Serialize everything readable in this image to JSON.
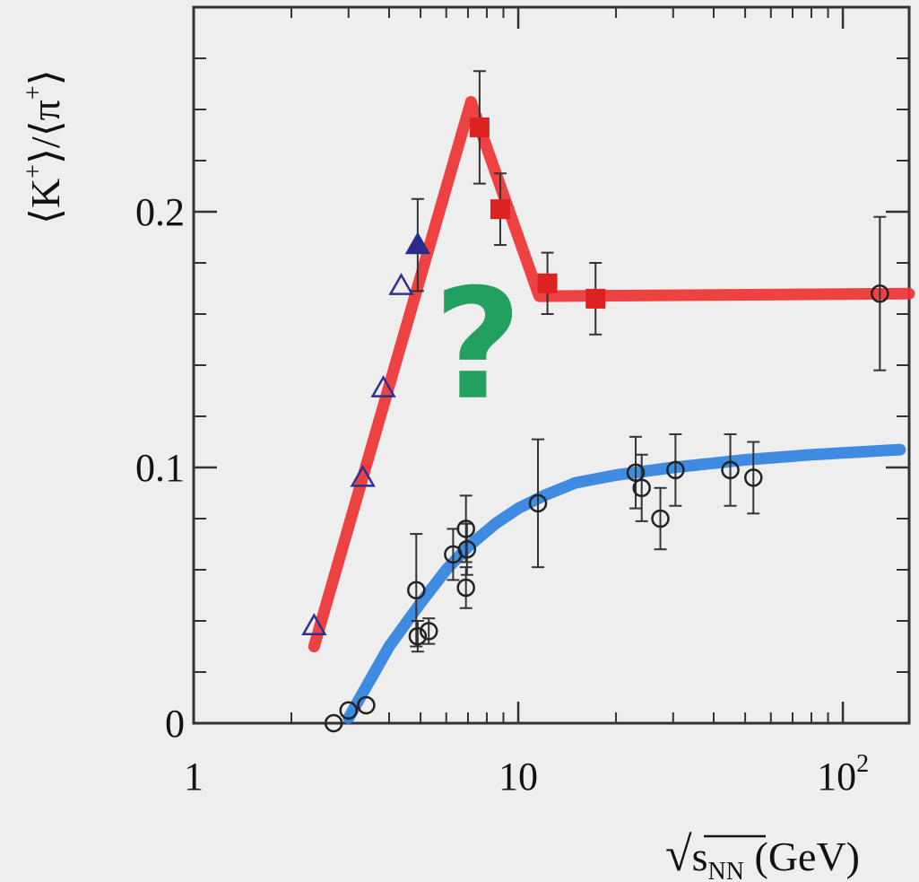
{
  "chart_data": {
    "type": "scatter",
    "xscale": "log",
    "xlim": [
      1,
      160
    ],
    "ylim": [
      0,
      0.28
    ],
    "xlabel": {
      "radical": "√",
      "main": "s",
      "sub": "NN",
      "unit": " (GeV)"
    },
    "ylabel": {
      "open": "⟨K",
      "sup1": "+",
      "mid": "⟩/⟨π",
      "sup2": "+",
      "close": "⟩"
    },
    "y_ticks": [
      {
        "value": 0,
        "label": "0"
      },
      {
        "value": 0.1,
        "label": "0.1"
      },
      {
        "value": 0.2,
        "label": "0.2"
      }
    ],
    "x_ticks": [
      {
        "value": 1,
        "label": "1"
      },
      {
        "value": 10,
        "label": "10"
      },
      {
        "value": 100,
        "label": "10",
        "sup": "2"
      }
    ],
    "annotation": {
      "text": "?",
      "x": 7.5,
      "y": 0.145,
      "color": "#22a060"
    },
    "series": [
      {
        "marker": "triangle-open",
        "color": "#303090",
        "points": [
          {
            "x": 2.35,
            "y": 0.038
          },
          {
            "x": 3.32,
            "y": 0.096
          },
          {
            "x": 3.84,
            "y": 0.131
          },
          {
            "x": 4.36,
            "y": 0.171
          }
        ]
      },
      {
        "marker": "triangle-filled",
        "color": "#2a2a8a",
        "points": [
          {
            "x": 4.9,
            "y": 0.187,
            "err": 0.018
          }
        ]
      },
      {
        "marker": "square-filled",
        "color": "#dd2222",
        "points": [
          {
            "x": 7.6,
            "y": 0.233,
            "err": 0.022
          },
          {
            "x": 8.8,
            "y": 0.201,
            "err": 0.014
          },
          {
            "x": 12.3,
            "y": 0.172,
            "err": 0.012
          },
          {
            "x": 17.3,
            "y": 0.166,
            "err": 0.014
          }
        ]
      },
      {
        "marker": "circle-open",
        "color": "#222222",
        "points": [
          {
            "x": 130,
            "y": 0.168,
            "err": 0.03
          },
          {
            "x": 2.7,
            "y": 0.0
          },
          {
            "x": 3.0,
            "y": 0.005
          },
          {
            "x": 3.4,
            "y": 0.007
          },
          {
            "x": 4.85,
            "y": 0.052,
            "err": 0.022
          },
          {
            "x": 4.9,
            "y": 0.034,
            "err": 0.006
          },
          {
            "x": 5.3,
            "y": 0.036,
            "err": 0.005
          },
          {
            "x": 6.3,
            "y": 0.066,
            "err": 0.01
          },
          {
            "x": 6.9,
            "y": 0.076,
            "err": 0.013
          },
          {
            "x": 6.95,
            "y": 0.068,
            "err": 0.01
          },
          {
            "x": 6.9,
            "y": 0.053,
            "err": 0.008
          },
          {
            "x": 11.5,
            "y": 0.086,
            "err": 0.025
          },
          {
            "x": 23,
            "y": 0.098,
            "err": 0.014
          },
          {
            "x": 24,
            "y": 0.092,
            "err": 0.013
          },
          {
            "x": 27.4,
            "y": 0.08,
            "err": 0.012
          },
          {
            "x": 30.5,
            "y": 0.099,
            "err": 0.014
          },
          {
            "x": 45,
            "y": 0.099,
            "err": 0.014
          },
          {
            "x": 53,
            "y": 0.096,
            "err": 0.014
          }
        ]
      }
    ],
    "curves": [
      {
        "color": "#ee3333",
        "points": [
          [
            2.35,
            0.03
          ],
          [
            7.15,
            0.243
          ],
          [
            8.0,
            0.225
          ],
          [
            11.6,
            0.167
          ],
          [
            160,
            0.168
          ]
        ]
      },
      {
        "color": "#2f82e0",
        "points": [
          [
            3.0,
            0.002
          ],
          [
            3.5,
            0.017
          ],
          [
            4.0,
            0.03
          ],
          [
            5.0,
            0.047
          ],
          [
            6.0,
            0.06
          ],
          [
            7.0,
            0.069
          ],
          [
            8.5,
            0.078
          ],
          [
            10.0,
            0.084
          ],
          [
            12.0,
            0.089
          ],
          [
            15.0,
            0.094
          ],
          [
            20.0,
            0.097
          ],
          [
            30.0,
            0.1
          ],
          [
            50.0,
            0.103
          ],
          [
            80.0,
            0.105
          ],
          [
            150.0,
            0.107
          ]
        ]
      }
    ]
  }
}
